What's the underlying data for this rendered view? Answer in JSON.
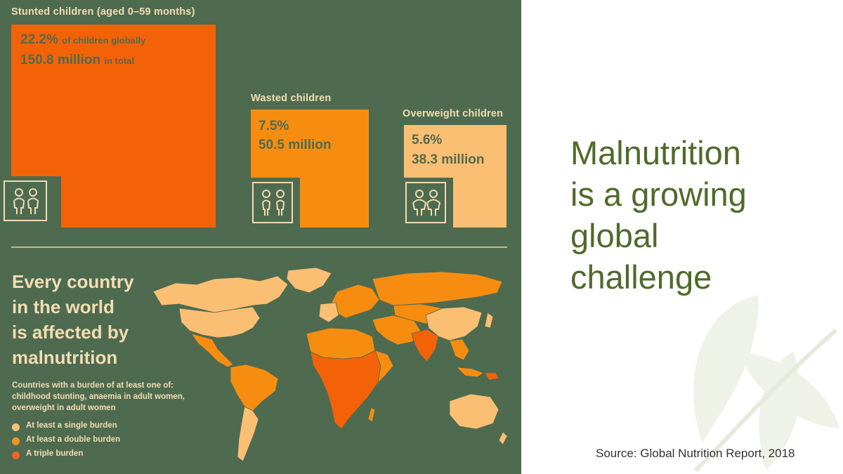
{
  "infographic": {
    "stunted": {
      "header": "Stunted children (aged 0–59 months)",
      "percent": "22.2%",
      "percent_suffix": "of children globally",
      "count": "150.8 million",
      "count_suffix": "in total"
    },
    "wasted": {
      "header": "Wasted children",
      "percent": "7.5%",
      "count": "50.5 million"
    },
    "overweight": {
      "header": "Overweight children",
      "percent": "5.6%",
      "count": "38.3 million"
    },
    "map_section": {
      "headline_lines": [
        "Every country",
        "in the world",
        "is affected by",
        "malnutrition"
      ],
      "description": "Countries with a burden of at least one of: childhood stunting, anaemia in adult women, overweight in adult women",
      "legend": [
        {
          "label": "At least a single burden",
          "color": "#f8c07a"
        },
        {
          "label": "At least a double burden",
          "color": "#f7941e"
        },
        {
          "label": "A triple burden",
          "color": "#f26422"
        }
      ]
    },
    "colors": {
      "background": "#4e6b50",
      "stunted": "#f46208",
      "wasted": "#f78d10",
      "overweight": "#fbbf73",
      "cream": "#f3ddb2"
    }
  },
  "slide": {
    "title_lines": [
      "Malnutrition",
      "is a growing",
      "global",
      "challenge"
    ],
    "source": "Source: Global Nutrition Report, 2018",
    "title_color": "#4f6a2a"
  }
}
